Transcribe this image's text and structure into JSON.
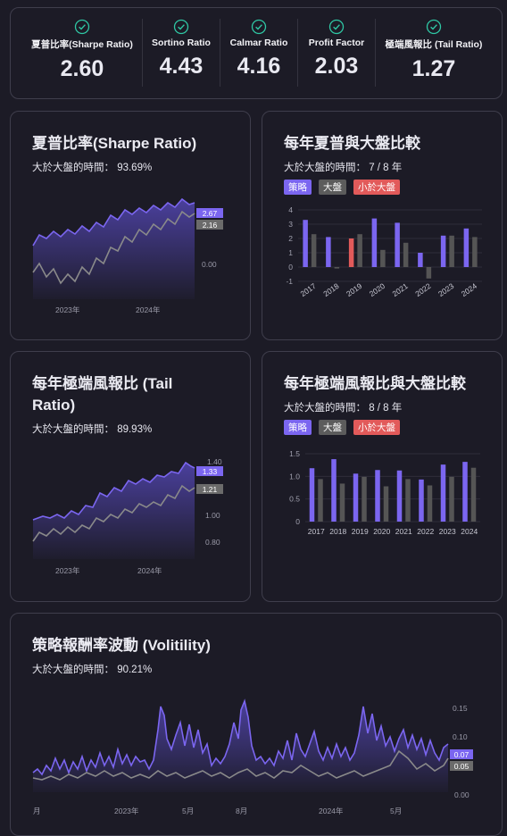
{
  "metrics": [
    {
      "label": "夏普比率(Sharpe Ratio)",
      "value": "2.60"
    },
    {
      "label": "Sortino Ratio",
      "value": "4.43"
    },
    {
      "label": "Calmar Ratio",
      "value": "4.16"
    },
    {
      "label": "Profit Factor",
      "value": "2.03"
    },
    {
      "label": "極端風報比 (Tail Ratio)",
      "value": "1.27"
    }
  ],
  "colors": {
    "strategy": "#7b66f0",
    "market": "#8a8a8a",
    "below": "#e25a5a",
    "check": "#2fc7a4",
    "bg": "#1c1b26"
  },
  "sharpe": {
    "title": "夏普比率(Sharpe Ratio)",
    "subtitle": "大於大盤的時間： 93.69%"
  },
  "yearly_sharpe": {
    "title": "每年夏普與大盤比較",
    "subtitle": "大於大盤的時間： 7 / 8 年"
  },
  "tail": {
    "title": "每年極端風報比 (Tail Ratio)",
    "subtitle": "大於大盤的時間： 89.93%"
  },
  "yearly_tail": {
    "title": "每年極端風報比與大盤比較",
    "subtitle": "大於大盤的時間： 8 / 8 年"
  },
  "vol": {
    "title": "策略報酬率波動 (Volitility)",
    "subtitle": "大於大盤的時間： 90.21%"
  },
  "legend": {
    "strategy": "策略",
    "market": "大盤",
    "below": "小於大盤"
  },
  "chart_data": [
    {
      "type": "area",
      "name": "sharpe",
      "x_ticks": [
        "2023年",
        "2024年"
      ],
      "y_ticks": [
        "0.00"
      ],
      "series": [
        {
          "name": "策略",
          "last": "2.67"
        },
        {
          "name": "大盤",
          "last": "2.16"
        }
      ]
    },
    {
      "type": "bar",
      "name": "yearly_sharpe",
      "categories": [
        "2017",
        "2018",
        "2019",
        "2020",
        "2021",
        "2022",
        "2023",
        "2024"
      ],
      "y_ticks": [
        "4",
        "3",
        "2",
        "1",
        "0",
        "-1"
      ],
      "ylim": [
        -1,
        4
      ],
      "series": [
        {
          "name": "策略",
          "values": [
            3.3,
            2.1,
            2.0,
            3.4,
            3.1,
            1.0,
            2.2,
            2.7
          ]
        },
        {
          "name": "大盤",
          "values": [
            2.3,
            -0.1,
            2.3,
            1.2,
            1.7,
            -0.8,
            2.2,
            2.1
          ]
        }
      ],
      "below_years": [
        "2019"
      ]
    },
    {
      "type": "area",
      "name": "tail",
      "x_ticks": [
        "2023年",
        "2024年"
      ],
      "y_ticks": [
        "1.40",
        "1.00",
        "0.80"
      ],
      "series": [
        {
          "name": "策略",
          "last": "1.33"
        },
        {
          "name": "大盤",
          "last": "1.21"
        }
      ]
    },
    {
      "type": "bar",
      "name": "yearly_tail",
      "categories": [
        "2017",
        "2018",
        "2019",
        "2020",
        "2021",
        "2022",
        "2023",
        "2024"
      ],
      "y_ticks": [
        "1.5",
        "1.0",
        "0.5",
        "0"
      ],
      "ylim": [
        0,
        1.5
      ],
      "series": [
        {
          "name": "策略",
          "values": [
            1.18,
            1.38,
            1.06,
            1.14,
            1.13,
            0.93,
            1.26,
            1.32
          ]
        },
        {
          "name": "大盤",
          "values": [
            0.94,
            0.84,
            0.99,
            0.78,
            0.94,
            0.8,
            0.99,
            1.19
          ]
        }
      ]
    },
    {
      "type": "area",
      "name": "vol",
      "x_ticks": [
        "月",
        "2023年",
        "5月",
        "8月",
        "2024年",
        "5月"
      ],
      "y_ticks": [
        "0.15",
        "0.10",
        "0.00"
      ],
      "series": [
        {
          "name": "策略",
          "last": "0.07"
        },
        {
          "name": "大盤",
          "last": "0.05"
        }
      ]
    }
  ]
}
